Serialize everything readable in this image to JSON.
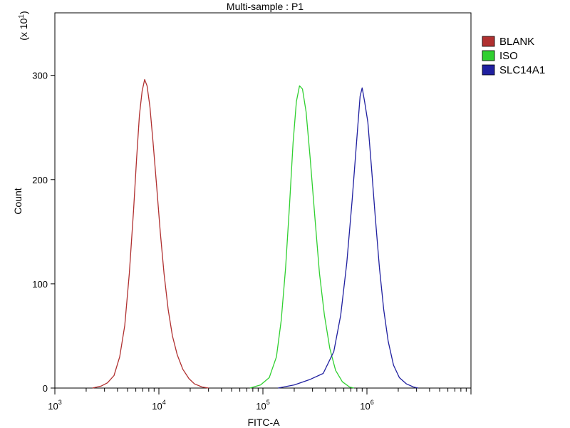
{
  "chart_data": {
    "type": "line",
    "title": "Multi-sample : P1",
    "xlabel": "FITC-A",
    "ylabel": "Count",
    "y_multiplier_label": "(x 10",
    "y_multiplier_exp": "1",
    "x_scale": "log",
    "xlim": [
      1000,
      10000000
    ],
    "ylim": [
      0,
      360
    ],
    "x_ticks": [
      {
        "value": 1000,
        "base": "10",
        "exp": "3"
      },
      {
        "value": 10000,
        "base": "10",
        "exp": "4"
      },
      {
        "value": 100000,
        "base": "10",
        "exp": "5"
      },
      {
        "value": 1000000,
        "base": "10",
        "exp": "6"
      }
    ],
    "y_ticks": [
      0,
      100,
      200,
      300
    ],
    "legend_position": "top-right",
    "series": [
      {
        "name": "BLANK",
        "color": "#b03030",
        "points": [
          [
            2300,
            0
          ],
          [
            2800,
            2
          ],
          [
            3200,
            5
          ],
          [
            3700,
            12
          ],
          [
            4200,
            30
          ],
          [
            4700,
            60
          ],
          [
            5200,
            110
          ],
          [
            5700,
            170
          ],
          [
            6100,
            220
          ],
          [
            6500,
            262
          ],
          [
            6900,
            285
          ],
          [
            7300,
            296
          ],
          [
            7700,
            290
          ],
          [
            8200,
            270
          ],
          [
            8800,
            235
          ],
          [
            9500,
            195
          ],
          [
            10300,
            150
          ],
          [
            11200,
            110
          ],
          [
            12300,
            75
          ],
          [
            13500,
            50
          ],
          [
            15000,
            32
          ],
          [
            17000,
            18
          ],
          [
            19500,
            9
          ],
          [
            22000,
            4
          ],
          [
            26000,
            1
          ],
          [
            30000,
            0
          ]
        ]
      },
      {
        "name": "ISO",
        "color": "#30d030",
        "points": [
          [
            75000,
            0
          ],
          [
            95000,
            3
          ],
          [
            115000,
            10
          ],
          [
            135000,
            30
          ],
          [
            150000,
            65
          ],
          [
            165000,
            115
          ],
          [
            180000,
            175
          ],
          [
            195000,
            235
          ],
          [
            210000,
            275
          ],
          [
            225000,
            290
          ],
          [
            240000,
            287
          ],
          [
            260000,
            265
          ],
          [
            285000,
            220
          ],
          [
            315000,
            165
          ],
          [
            350000,
            110
          ],
          [
            390000,
            70
          ],
          [
            440000,
            38
          ],
          [
            500000,
            17
          ],
          [
            580000,
            6
          ],
          [
            680000,
            1
          ],
          [
            750000,
            0
          ]
        ]
      },
      {
        "name": "SLC14A1",
        "color": "#2020a0",
        "points": [
          [
            140000,
            0
          ],
          [
            200000,
            3
          ],
          [
            280000,
            8
          ],
          [
            380000,
            14
          ],
          [
            480000,
            35
          ],
          [
            560000,
            70
          ],
          [
            640000,
            120
          ],
          [
            720000,
            180
          ],
          [
            800000,
            240
          ],
          [
            860000,
            280
          ],
          [
            900000,
            288
          ],
          [
            950000,
            275
          ],
          [
            1020000,
            255
          ],
          [
            1100000,
            215
          ],
          [
            1200000,
            165
          ],
          [
            1320000,
            115
          ],
          [
            1450000,
            75
          ],
          [
            1600000,
            45
          ],
          [
            1800000,
            22
          ],
          [
            2050000,
            10
          ],
          [
            2400000,
            4
          ],
          [
            2800000,
            1
          ],
          [
            3100000,
            0
          ]
        ]
      }
    ]
  }
}
